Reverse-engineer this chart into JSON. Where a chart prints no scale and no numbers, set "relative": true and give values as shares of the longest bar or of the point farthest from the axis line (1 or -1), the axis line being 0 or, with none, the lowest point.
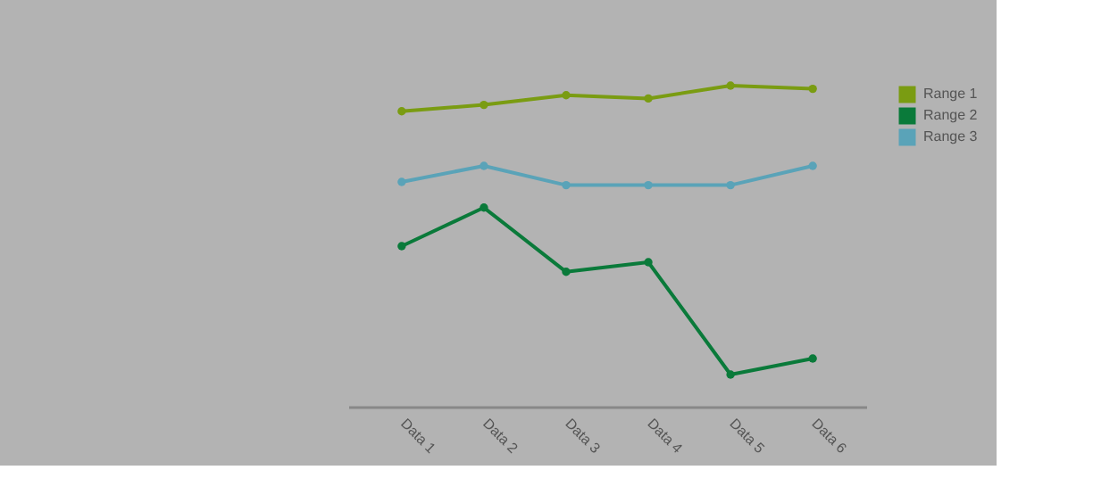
{
  "chart_data": {
    "type": "line",
    "relative": true,
    "categories": [
      "Data 1",
      "Data 2",
      "Data 3",
      "Data 4",
      "Data 5",
      "Data 6"
    ],
    "series": [
      {
        "name": "Range 1",
        "color": "#7a9c12",
        "values": [
          0.92,
          0.94,
          0.97,
          0.96,
          1,
          0.99
        ]
      },
      {
        "name": "Range 2",
        "color": "#0a7a3a",
        "values": [
          0.5,
          0.62,
          0.42,
          0.45,
          0.1,
          0.15
        ]
      },
      {
        "name": "Range 3",
        "color": "#5aa3b8",
        "values": [
          0.7,
          0.75,
          0.69,
          0.69,
          0.69,
          0.75
        ]
      }
    ],
    "marker": "circle",
    "line_style": "solid",
    "legend": "top right",
    "grid": false
  }
}
